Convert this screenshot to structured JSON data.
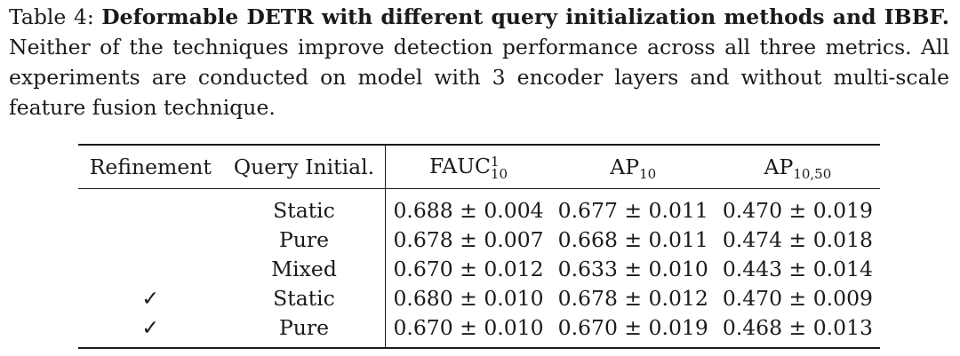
{
  "caption": {
    "label": "Table 4:",
    "title": "Deformable DETR with different query initialization methods and IBBF.",
    "text": "Neither of the techniques improve detection performance across all three metrics. All experiments are conducted on model with 3 encoder layers and without multi-scale feature fusion technique."
  },
  "table": {
    "headers": {
      "refinement": "Refinement",
      "query": "Query Initial.",
      "m1_base": "FAUC",
      "m1_sup": "1",
      "m1_sub": "10",
      "m2_base": "AP",
      "m2_sub": "10",
      "m3_base": "AP",
      "m3_sub": "10,50"
    },
    "rows": [
      {
        "refinement": "",
        "query": "Static",
        "fauc": "0.688 ± 0.004",
        "ap10": "0.677 ± 0.011",
        "ap1050": "0.470 ± 0.019"
      },
      {
        "refinement": "",
        "query": "Pure",
        "fauc": "0.678 ± 0.007",
        "ap10": "0.668 ± 0.011",
        "ap1050": "0.474 ± 0.018"
      },
      {
        "refinement": "",
        "query": "Mixed",
        "fauc": "0.670 ± 0.012",
        "ap10": "0.633 ± 0.010",
        "ap1050": "0.443 ± 0.014"
      },
      {
        "refinement": "✓",
        "query": "Static",
        "fauc": "0.680 ± 0.010",
        "ap10": "0.678 ± 0.012",
        "ap1050": "0.470 ± 0.009"
      },
      {
        "refinement": "✓",
        "query": "Pure",
        "fauc": "0.670 ± 0.010",
        "ap10": "0.670 ± 0.019",
        "ap1050": "0.468 ± 0.013"
      }
    ]
  }
}
